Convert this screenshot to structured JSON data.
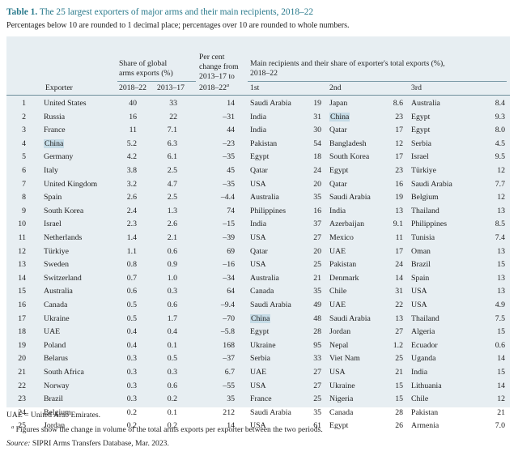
{
  "title": {
    "label": "Table 1.",
    "text": "The 25 largest exporters of major arms and their main recipients, 2018–22"
  },
  "subtitle": "Percentages below 10 are rounded to 1 decimal place; percentages over 10 are rounded to whole numbers.",
  "headers": {
    "exporter": "Exporter",
    "share_line1": "Share of global",
    "share_line2": "arms exports (%)",
    "change_line1": "Per cent",
    "change_line2": "change from",
    "change_line3": "2013–17 to",
    "change_line4": "2018–22",
    "change_note": "a",
    "recip_line1": "Main recipients and their share of exporter's total exports (%),",
    "recip_line2": "2018–22",
    "col_2018": "2018–22",
    "col_2013": "2013–17",
    "first": "1st",
    "second": "2nd",
    "third": "3rd"
  },
  "rows": [
    {
      "n": "1",
      "ex": "United States",
      "s18": "40",
      "s13": "33",
      "ch": "14",
      "r1": "Saudi Arabia",
      "p1": "19",
      "r2": "Japan",
      "p2": "8.6",
      "r3": "Australia",
      "p3": "8.4"
    },
    {
      "n": "2",
      "ex": "Russia",
      "s18": "16",
      "s13": "22",
      "ch": "–31",
      "r1": "India",
      "p1": "31",
      "r2": "China",
      "p2": "23",
      "r3": "Egypt",
      "p3": "9.3"
    },
    {
      "n": "3",
      "ex": "France",
      "s18": "11",
      "s13": "7.1",
      "ch": "44",
      "r1": "India",
      "p1": "30",
      "r2": "Qatar",
      "p2": "17",
      "r3": "Egypt",
      "p3": "8.0"
    },
    {
      "n": "4",
      "ex": "China",
      "s18": "5.2",
      "s13": "6.3",
      "ch": "–23",
      "r1": "Pakistan",
      "p1": "54",
      "r2": "Bangladesh",
      "p2": "12",
      "r3": "Serbia",
      "p3": "4.5"
    },
    {
      "n": "5",
      "ex": "Germany",
      "s18": "4.2",
      "s13": "6.1",
      "ch": "–35",
      "r1": "Egypt",
      "p1": "18",
      "r2": "South Korea",
      "p2": "17",
      "r3": "Israel",
      "p3": "9.5"
    },
    {
      "n": "6",
      "ex": "Italy",
      "s18": "3.8",
      "s13": "2.5",
      "ch": "45",
      "r1": "Qatar",
      "p1": "24",
      "r2": "Egypt",
      "p2": "23",
      "r3": "Türkiye",
      "p3": "12"
    },
    {
      "n": "7",
      "ex": "United Kingdom",
      "s18": "3.2",
      "s13": "4.7",
      "ch": "–35",
      "r1": "USA",
      "p1": "20",
      "r2": "Qatar",
      "p2": "16",
      "r3": "Saudi Arabia",
      "p3": "7.7"
    },
    {
      "n": "8",
      "ex": "Spain",
      "s18": "2.6",
      "s13": "2.5",
      "ch": "–4.4",
      "r1": "Australia",
      "p1": "35",
      "r2": "Saudi Arabia",
      "p2": "19",
      "r3": "Belgium",
      "p3": "12"
    },
    {
      "n": "9",
      "ex": "South Korea",
      "s18": "2.4",
      "s13": "1.3",
      "ch": "74",
      "r1": "Philippines",
      "p1": "16",
      "r2": "India",
      "p2": "13",
      "r3": "Thailand",
      "p3": "13"
    },
    {
      "n": "10",
      "ex": "Israel",
      "s18": "2.3",
      "s13": "2.6",
      "ch": "–15",
      "r1": "India",
      "p1": "37",
      "r2": "Azerbaijan",
      "p2": "9.1",
      "r3": "Philippines",
      "p3": "8.5"
    },
    {
      "n": "11",
      "ex": "Netherlands",
      "s18": "1.4",
      "s13": "2.1",
      "ch": "–39",
      "r1": "USA",
      "p1": "27",
      "r2": "Mexico",
      "p2": "11",
      "r3": "Tunisia",
      "p3": "7.4"
    },
    {
      "n": "12",
      "ex": "Türkiye",
      "s18": "1.1",
      "s13": "0.6",
      "ch": "69",
      "r1": "Qatar",
      "p1": "20",
      "r2": "UAE",
      "p2": "17",
      "r3": "Oman",
      "p3": "13"
    },
    {
      "n": "13",
      "ex": "Sweden",
      "s18": "0.8",
      "s13": "0.9",
      "ch": "–16",
      "r1": "USA",
      "p1": "25",
      "r2": "Pakistan",
      "p2": "24",
      "r3": "Brazil",
      "p3": "15"
    },
    {
      "n": "14",
      "ex": "Switzerland",
      "s18": "0.7",
      "s13": "1.0",
      "ch": "–34",
      "r1": "Australia",
      "p1": "21",
      "r2": "Denmark",
      "p2": "14",
      "r3": "Spain",
      "p3": "13"
    },
    {
      "n": "15",
      "ex": "Australia",
      "s18": "0.6",
      "s13": "0.3",
      "ch": "64",
      "r1": "Canada",
      "p1": "35",
      "r2": "Chile",
      "p2": "31",
      "r3": "USA",
      "p3": "13"
    },
    {
      "n": "16",
      "ex": "Canada",
      "s18": "0.5",
      "s13": "0.6",
      "ch": "–9.4",
      "r1": "Saudi Arabia",
      "p1": "49",
      "r2": "UAE",
      "p2": "22",
      "r3": "USA",
      "p3": "4.9"
    },
    {
      "n": "17",
      "ex": "Ukraine",
      "s18": "0.5",
      "s13": "1.7",
      "ch": "–70",
      "r1": "China",
      "p1": "48",
      "r2": "Saudi Arabia",
      "p2": "13",
      "r3": "Thailand",
      "p3": "7.5"
    },
    {
      "n": "18",
      "ex": "UAE",
      "s18": "0.4",
      "s13": "0.4",
      "ch": "–5.8",
      "r1": "Egypt",
      "p1": "28",
      "r2": "Jordan",
      "p2": "27",
      "r3": "Algeria",
      "p3": "15"
    },
    {
      "n": "19",
      "ex": "Poland",
      "s18": "0.4",
      "s13": "0.1",
      "ch": "168",
      "r1": "Ukraine",
      "p1": "95",
      "r2": "Nepal",
      "p2": "1.2",
      "r3": "Ecuador",
      "p3": "0.6"
    },
    {
      "n": "20",
      "ex": "Belarus",
      "s18": "0.3",
      "s13": "0.5",
      "ch": "–37",
      "r1": "Serbia",
      "p1": "33",
      "r2": "Viet Nam",
      "p2": "25",
      "r3": "Uganda",
      "p3": "14"
    },
    {
      "n": "21",
      "ex": "South Africa",
      "s18": "0.3",
      "s13": "0.3",
      "ch": "6.7",
      "r1": "UAE",
      "p1": "27",
      "r2": "USA",
      "p2": "21",
      "r3": "India",
      "p3": "15"
    },
    {
      "n": "22",
      "ex": "Norway",
      "s18": "0.3",
      "s13": "0.6",
      "ch": "–55",
      "r1": "USA",
      "p1": "27",
      "r2": "Ukraine",
      "p2": "15",
      "r3": "Lithuania",
      "p3": "14"
    },
    {
      "n": "23",
      "ex": "Brazil",
      "s18": "0.3",
      "s13": "0.2",
      "ch": "35",
      "r1": "France",
      "p1": "25",
      "r2": "Nigeria",
      "p2": "15",
      "r3": "Chile",
      "p3": "12"
    },
    {
      "n": "24",
      "ex": "Belgium",
      "s18": "0.2",
      "s13": "0.1",
      "ch": "212",
      "r1": "Saudi Arabia",
      "p1": "35",
      "r2": "Canada",
      "p2": "28",
      "r3": "Pakistan",
      "p3": "21"
    },
    {
      "n": "25",
      "ex": "Jordan",
      "s18": "0.2",
      "s13": "0.2",
      "ch": "14",
      "r1": "USA",
      "p1": "61",
      "r2": "Egypt",
      "p2": "26",
      "r3": "Armenia",
      "p3": "7.0"
    }
  ],
  "highlight_term": "China",
  "highlight_color": "#c5dbe6",
  "accent_color": "#2a7a8c",
  "panel_color": "#e7eef2",
  "footnotes": {
    "uae": "UAE = United Arab Emirates.",
    "a_mark": "a",
    "a_text": "Figures show the change in volume of the total arms exports per exporter between the two periods.",
    "source_label": "Source:",
    "source_text": "SIPRI Arms Transfers Database, Mar. 2023."
  }
}
